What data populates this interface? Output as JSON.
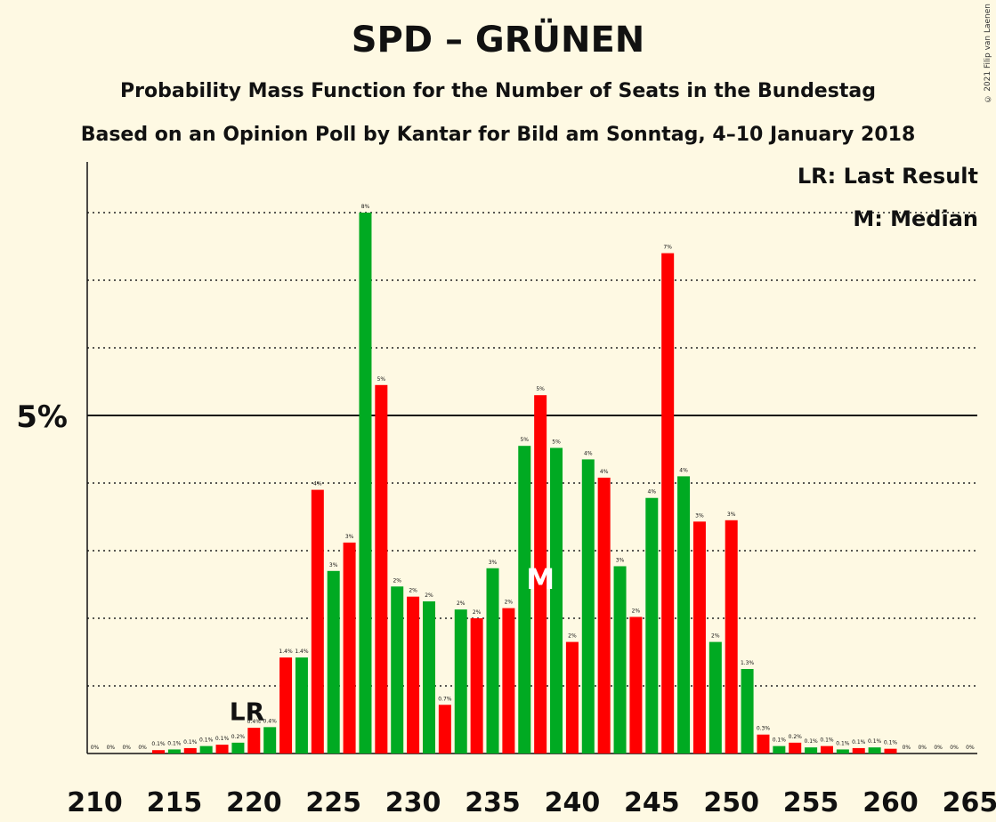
{
  "title": "SPD – GRÜNEN",
  "subtitle1": "Probability Mass Function for the Number of Seats in the Bundestag",
  "subtitle2": "Based on an Opinion Poll by Kantar for Bild am Sonntag, 4–10 January 2018",
  "copyright": "© 2021 Filip van Laenen",
  "legend": {
    "lr": "LR: Last Result",
    "m": "M: Median"
  },
  "colors": {
    "red": "#ff0000",
    "green": "#00aa22",
    "background": "#fef9e3"
  },
  "chart_data": {
    "type": "bar",
    "x": [
      210,
      211,
      212,
      213,
      214,
      215,
      216,
      217,
      218,
      219,
      220,
      221,
      222,
      223,
      224,
      225,
      226,
      227,
      228,
      229,
      230,
      231,
      232,
      233,
      234,
      235,
      236,
      237,
      238,
      239,
      240,
      241,
      242,
      243,
      244,
      245,
      246,
      247,
      248,
      249,
      250,
      251,
      252,
      253,
      254,
      255,
      256,
      257,
      258,
      259,
      260,
      261,
      262,
      263,
      264,
      265
    ],
    "values": [
      0,
      0,
      0,
      0,
      0.05,
      0.06,
      0.08,
      0.11,
      0.13,
      0.16,
      0.38,
      0.39,
      1.42,
      1.42,
      3.9,
      2.7,
      3.12,
      8.0,
      5.45,
      2.47,
      2.32,
      2.25,
      0.72,
      2.13,
      2.0,
      2.74,
      2.15,
      4.55,
      5.3,
      4.52,
      1.65,
      4.35,
      4.08,
      2.77,
      2.02,
      3.78,
      7.4,
      4.1,
      3.43,
      1.65,
      3.45,
      1.25,
      0.28,
      0.11,
      0.16,
      0.09,
      0.11,
      0.06,
      0.08,
      0.09,
      0.07,
      0,
      0,
      0,
      0,
      0
    ],
    "data_labels": [
      "0%",
      "0%",
      "0%",
      "0%",
      "0.1%",
      "0.1%",
      "0.1%",
      "0.1%",
      "0.1%",
      "0.2%",
      "0.4%",
      "0.4%",
      "1.4%",
      "1.4%",
      "4%",
      "3%",
      "3%",
      "8%",
      "5%",
      "2%",
      "2%",
      "2%",
      "0.7%",
      "2%",
      "2%",
      "3%",
      "2%",
      "5%",
      "5%",
      "5%",
      "2%",
      "4%",
      "4%",
      "3%",
      "2%",
      "4%",
      "7%",
      "4%",
      "3%",
      "2%",
      "3%",
      "1.3%",
      "0.3%",
      "0.1%",
      "0.2%",
      "0.1%",
      "0.1%",
      "0.1%",
      "0.1%",
      "0.1%",
      "0.1%",
      "0%",
      "0%",
      "0%",
      "0%",
      "0%"
    ],
    "x_tick_labels": [
      "210",
      "215",
      "220",
      "225",
      "230",
      "235",
      "240",
      "245",
      "250",
      "255",
      "260",
      "265"
    ],
    "y_tick_label": "5%",
    "ylim": [
      0,
      8
    ],
    "last_result": 221,
    "last_result_label": "LR",
    "median": 238,
    "median_label": "M"
  }
}
